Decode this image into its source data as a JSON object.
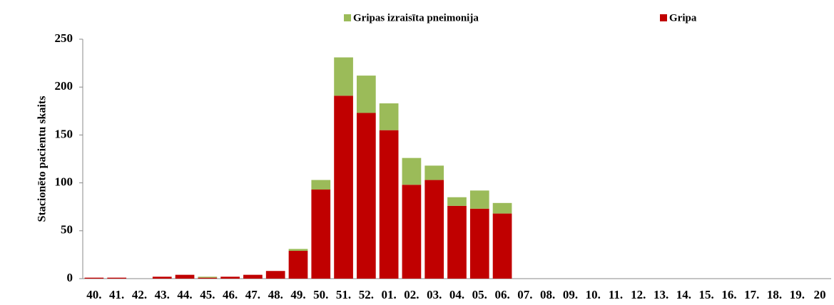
{
  "chart_data": {
    "type": "stacked_bar",
    "y_label": "Stacionēto pacientu skaits",
    "categories": [
      "40.",
      "41.",
      "42.",
      "43.",
      "44.",
      "45.",
      "46.",
      "47.",
      "48.",
      "49.",
      "50.",
      "51.",
      "52.",
      "01.",
      "02.",
      "03.",
      "04.",
      "05.",
      "06.",
      "07.",
      "08.",
      "09.",
      "10.",
      "11.",
      "12.",
      "13.",
      "14.",
      "15.",
      "16.",
      "17.",
      "18.",
      "19.",
      "20"
    ],
    "series": [
      {
        "name": "Gripa",
        "color": "#c00000",
        "values": [
          1,
          1,
          0,
          2,
          4,
          1,
          2,
          4,
          8,
          29,
          93,
          191,
          173,
          155,
          98,
          103,
          76,
          73,
          68,
          null,
          null,
          null,
          null,
          null,
          null,
          null,
          null,
          null,
          null,
          null,
          null,
          null,
          null
        ]
      },
      {
        "name": "Gripas izraisīta pneimonija",
        "color": "#9bbb59",
        "values": [
          0,
          0,
          0,
          0,
          0,
          1,
          0,
          0,
          0,
          2,
          10,
          40,
          39,
          28,
          28,
          15,
          9,
          19,
          11,
          null,
          null,
          null,
          null,
          null,
          null,
          null,
          null,
          null,
          null,
          null,
          null,
          null,
          null
        ]
      }
    ],
    "ylim": [
      0,
      250
    ],
    "yticks": [
      0,
      50,
      100,
      150,
      200,
      250
    ],
    "grid": false
  }
}
